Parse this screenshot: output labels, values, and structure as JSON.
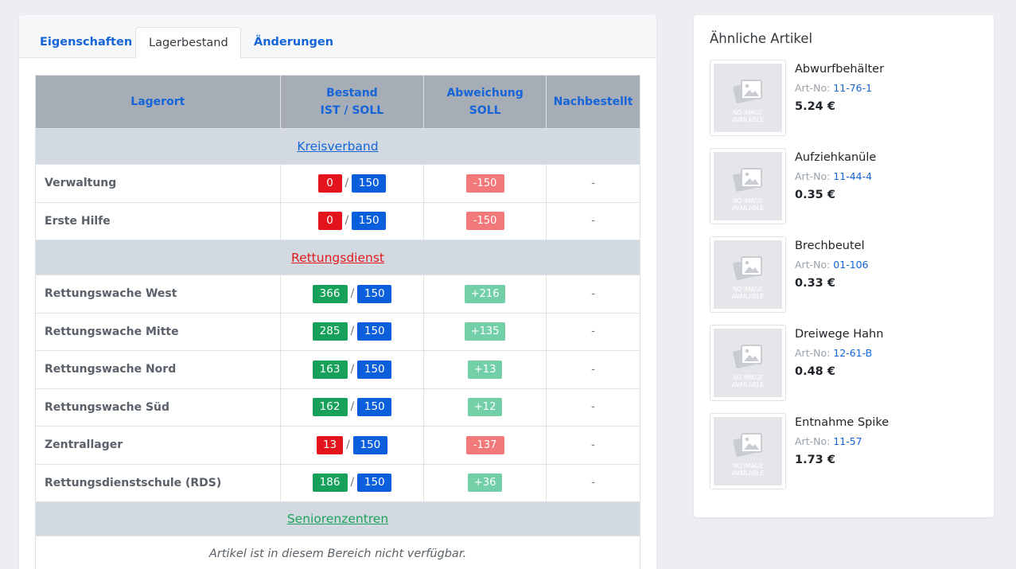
{
  "tabs": {
    "properties": "Eigenschaften",
    "stock": "Lagerbestand",
    "changes": "Änderungen"
  },
  "table": {
    "headers": {
      "location": "Lagerort",
      "stock_line1": "Bestand",
      "stock_line2": "IST / SOLL",
      "deviation_line1": "Abweichung",
      "deviation_line2": "SOLL",
      "reordered": "Nachbestellt"
    },
    "groups": {
      "kreisverband": "Kreisverband",
      "rettungsdienst": "Rettungsdienst",
      "seniorenzentren": "Seniorenzentren"
    },
    "kreisverband_rows": [
      {
        "location": "Verwaltung",
        "ist": "0",
        "soll": "150",
        "deviation": "-150",
        "reordered": "-"
      },
      {
        "location": "Erste Hilfe",
        "ist": "0",
        "soll": "150",
        "deviation": "-150",
        "reordered": "-"
      }
    ],
    "rettungsdienst_rows": [
      {
        "location": "Rettungswache West",
        "ist": "366",
        "soll": "150",
        "deviation": "+216",
        "reordered": "-"
      },
      {
        "location": "Rettungswache Mitte",
        "ist": "285",
        "soll": "150",
        "deviation": "+135",
        "reordered": "-"
      },
      {
        "location": "Rettungswache Nord",
        "ist": "163",
        "soll": "150",
        "deviation": "+13",
        "reordered": "-"
      },
      {
        "location": "Rettungswache Süd",
        "ist": "162",
        "soll": "150",
        "deviation": "+12",
        "reordered": "-"
      },
      {
        "location": "Zentrallager",
        "ist": "13",
        "soll": "150",
        "deviation": "-137",
        "reordered": "-"
      },
      {
        "location": "Rettungsdienstschule (RDS)",
        "ist": "186",
        "soll": "150",
        "deviation": "+36",
        "reordered": "-"
      }
    ],
    "seniorenzentren_note": "Artikel ist in diesem Bereich nicht verfügbar.",
    "slash": "/"
  },
  "similar": {
    "title": "Ähnliche Artikel",
    "art_no_label": "Art-No:",
    "placeholder_line1": "NO IMAGE",
    "placeholder_line2": "AVAILABLE",
    "items": [
      {
        "name": "Abwurfbehälter",
        "code": "11-76-1",
        "price": "5.24 €"
      },
      {
        "name": "Aufziehkanüle",
        "code": "11-44-4",
        "price": "0.35 €"
      },
      {
        "name": "Brechbeutel",
        "code": "01-106",
        "price": "0.33 €"
      },
      {
        "name": "Dreiwege Hahn",
        "code": "12-61-B",
        "price": "0.48 €"
      },
      {
        "name": "Entnahme Spike",
        "code": "11-57",
        "price": "1.73 €"
      }
    ]
  },
  "colors": {
    "link_blue": "#1565d8",
    "badge_red": "#e3141c",
    "badge_green": "#16a05a",
    "badge_blue": "#0b5fdd",
    "deviation_red": "#f2787a",
    "deviation_green": "#72cfa7",
    "group_red": "#e3191e",
    "group_green": "#1ba35b"
  }
}
